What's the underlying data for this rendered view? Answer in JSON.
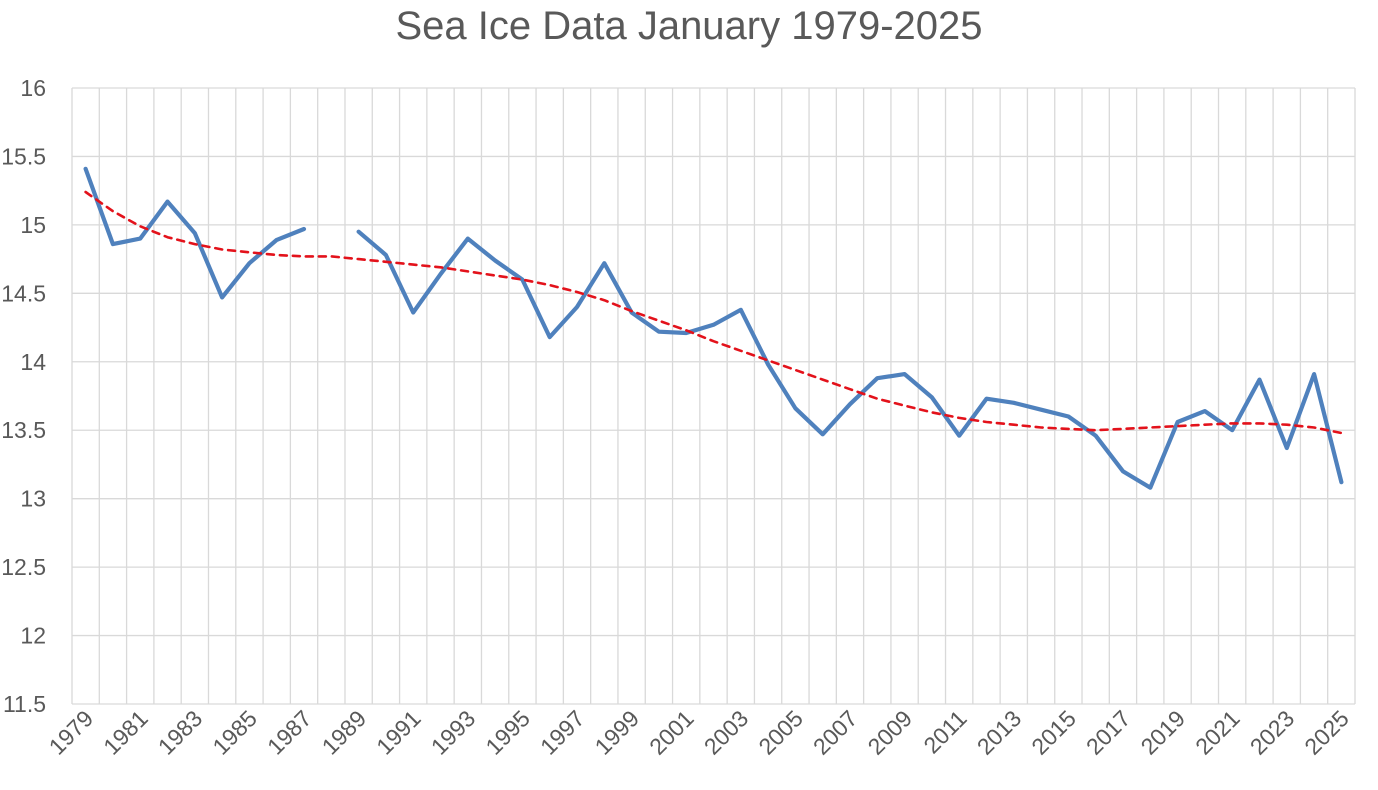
{
  "chart_data": {
    "type": "line",
    "title": "Sea Ice Data January 1979-2025",
    "xlabel": "",
    "ylabel": "",
    "ylim": [
      11.5,
      16
    ],
    "yticks": [
      "11.5",
      "12",
      "12.5",
      "13",
      "13.5",
      "14",
      "14.5",
      "15",
      "15.5",
      "16"
    ],
    "xlim": [
      1979,
      2025
    ],
    "xtick_labels": [
      "1979",
      "1981",
      "1983",
      "1985",
      "1987",
      "1989",
      "1991",
      "1993",
      "1995",
      "1997",
      "1999",
      "2001",
      "2003",
      "2005",
      "2007",
      "2009",
      "2011",
      "2013",
      "2015",
      "2017",
      "2019",
      "2021",
      "2023",
      "2025"
    ],
    "grid": true,
    "legend": "none",
    "colors": {
      "series": "#4f81bd",
      "trend": "#e3121b",
      "grid": "#d9d9d9",
      "text": "#595959"
    },
    "series": [
      {
        "x": [
          1979,
          1980,
          1981,
          1982,
          1983,
          1984,
          1985,
          1986,
          1987,
          1988,
          1989,
          1990,
          1991,
          1992,
          1993,
          1994,
          1995,
          1996,
          1997,
          1998,
          1999,
          2000,
          2001,
          2002,
          2003,
          2004,
          2005,
          2006,
          2007,
          2008,
          2009,
          2010,
          2011,
          2012,
          2013,
          2014,
          2015,
          2016,
          2017,
          2018,
          2019,
          2020,
          2021,
          2022,
          2023,
          2024,
          2025
        ],
        "values": [
          15.41,
          14.86,
          14.9,
          15.17,
          14.94,
          14.47,
          14.72,
          14.89,
          14.97,
          null,
          14.95,
          14.78,
          14.36,
          14.64,
          14.9,
          14.74,
          14.6,
          14.18,
          14.4,
          14.72,
          14.36,
          14.22,
          14.21,
          14.27,
          14.38,
          13.98,
          13.66,
          13.47,
          13.69,
          13.88,
          13.91,
          13.74,
          13.46,
          13.73,
          13.7,
          13.65,
          13.6,
          13.46,
          13.2,
          13.08,
          13.56,
          13.64,
          13.5,
          13.87,
          13.37,
          13.91,
          13.12
        ]
      },
      {
        "style": "dashed",
        "x": [
          1979,
          1980,
          1981,
          1982,
          1983,
          1984,
          1985,
          1986,
          1987,
          1988,
          1989,
          1990,
          1991,
          1992,
          1993,
          1994,
          1995,
          1996,
          1997,
          1998,
          1999,
          2000,
          2001,
          2002,
          2003,
          2004,
          2005,
          2006,
          2007,
          2008,
          2009,
          2010,
          2011,
          2012,
          2013,
          2014,
          2015,
          2016,
          2017,
          2018,
          2019,
          2020,
          2021,
          2022,
          2023,
          2024,
          2025
        ],
        "values": [
          15.24,
          15.1,
          14.99,
          14.91,
          14.86,
          14.82,
          14.8,
          14.78,
          14.77,
          14.77,
          14.75,
          14.73,
          14.71,
          14.69,
          14.66,
          14.63,
          14.6,
          14.56,
          14.51,
          14.45,
          14.37,
          14.3,
          14.23,
          14.15,
          14.08,
          14.01,
          13.94,
          13.87,
          13.8,
          13.73,
          13.68,
          13.63,
          13.59,
          13.56,
          13.54,
          13.52,
          13.51,
          13.5,
          13.51,
          13.52,
          13.53,
          13.54,
          13.55,
          13.55,
          13.54,
          13.52,
          13.48
        ]
      }
    ]
  }
}
